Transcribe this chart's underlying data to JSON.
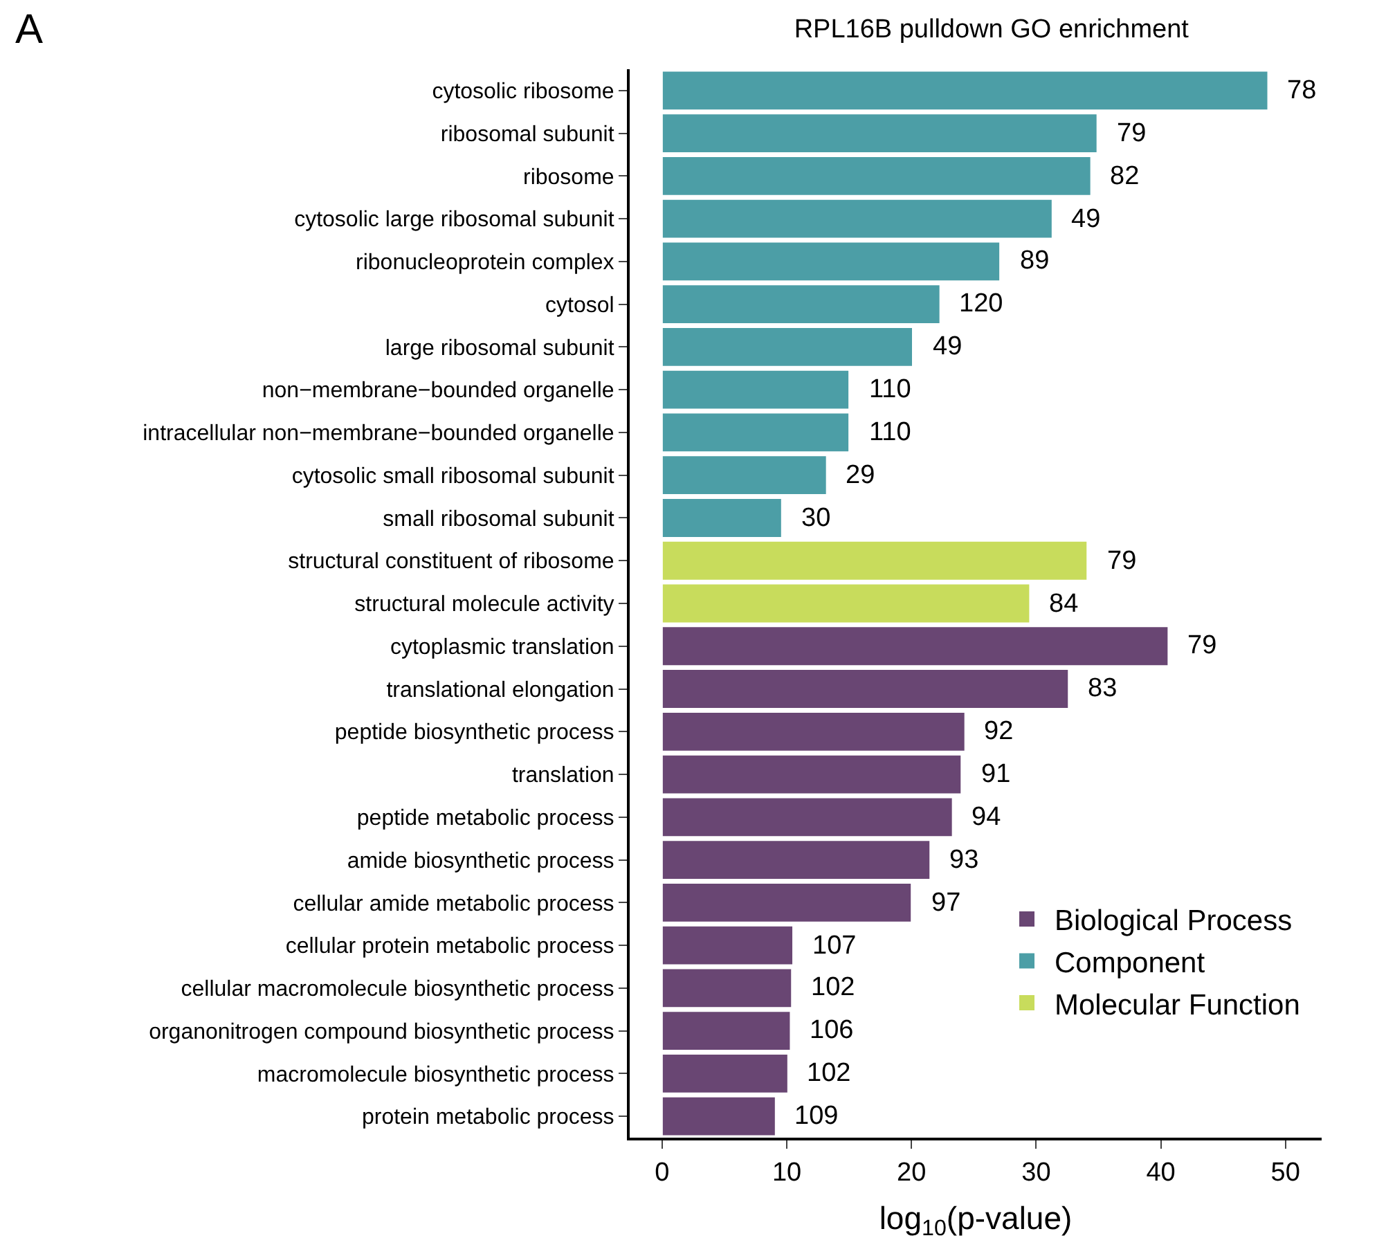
{
  "chart_data": {
    "type": "bar",
    "orientation": "horizontal",
    "title": "RPL16B pulldown GO enrichment",
    "xlabel": "log$_{10}$(p-value)",
    "annotations": [
      "A",
      {
        "text": "78",
        "x": 48.6,
        "y": "cytosolic ribosome"
      },
      {
        "text": "79",
        "x": 34.9,
        "y": "ribosomal subunit"
      },
      {
        "text": "82",
        "x": 34.4,
        "y": "ribosome"
      },
      {
        "text": "49",
        "x": 31.3,
        "y": "cytosolic large ribosomal subunit"
      },
      {
        "text": "89",
        "x": 27.1,
        "y": "ribonucleoprotein complex"
      },
      {
        "text": "120",
        "x": 22.3,
        "y": "cytosol"
      },
      {
        "text": "49",
        "x": 20.1,
        "y": "large ribosomal subunit"
      },
      {
        "text": "110",
        "x": 15.0,
        "y": "non−membrane−bounded organelle"
      },
      {
        "text": "110",
        "x": 15.0,
        "y": "intracellular non−membrane−bounded organelle"
      },
      {
        "text": "29",
        "x": 13.2,
        "y": "cytosolic small ribosomal subunit"
      },
      {
        "text": "30",
        "x": 9.6,
        "y": "small ribosomal subunit"
      },
      {
        "text": "79",
        "x": 34.1,
        "y": "structural constituent of ribosome"
      },
      {
        "text": "84",
        "x": 29.5,
        "y": "structural molecule activity"
      },
      {
        "text": "79",
        "x": 40.6,
        "y": "cytoplasmic translation"
      },
      {
        "text": "83",
        "x": 32.6,
        "y": "translational elongation"
      },
      {
        "text": "92",
        "x": 24.3,
        "y": "peptide biosynthetic process"
      },
      {
        "text": "91",
        "x": 24.0,
        "y": "translation"
      },
      {
        "text": "94",
        "x": 23.3,
        "y": "peptide metabolic process"
      },
      {
        "text": "93",
        "x": 21.5,
        "y": "amide biosynthetic process"
      },
      {
        "text": "97",
        "x": 20.0,
        "y": "cellular amide metabolic process"
      },
      {
        "text": "107",
        "x": 10.5,
        "y": "cellular protein metabolic process"
      },
      {
        "text": "102",
        "x": 10.4,
        "y": "cellular macromolecule biosynthetic process"
      },
      {
        "text": "106",
        "x": 10.3,
        "y": "organonitrogen compound biosynthetic process"
      },
      {
        "text": "102",
        "x": 10.1,
        "y": "macromolecule biosynthetic process"
      },
      {
        "text": "109",
        "x": 9.1,
        "y": "protein metabolic process"
      }
    ],
    "categories": [
      "cytosolic ribosome",
      "ribosomal subunit",
      "ribosome",
      "cytosolic large ribosomal subunit",
      "ribonucleoprotein complex",
      "cytosol",
      "large ribosomal subunit",
      "non−membrane−bounded organelle",
      "intracellular non−membrane−bounded organelle",
      "cytosolic small ribosomal subunit",
      "small ribosomal subunit",
      "structural constituent of ribosome",
      "structural molecule activity",
      "cytoplasmic translation",
      "translational elongation",
      "peptide biosynthetic process",
      "translation",
      "peptide metabolic process",
      "amide biosynthetic process",
      "cellular amide metabolic process",
      "cellular protein metabolic process",
      "cellular macromolecule biosynthetic process",
      "organonitrogen compound biosynthetic process",
      "macromolecule biosynthetic process",
      "protein metabolic process"
    ],
    "series": [
      {
        "name": "Biological Process",
        "color": "#694673",
        "values": [
          null,
          null,
          null,
          null,
          null,
          null,
          null,
          null,
          null,
          null,
          null,
          null,
          null,
          40.6,
          32.6,
          24.3,
          24.0,
          23.3,
          21.5,
          20.0,
          10.5,
          10.4,
          10.3,
          10.1,
          9.1
        ]
      },
      {
        "name": "Component",
        "color": "#4c9ea6",
        "values": [
          48.6,
          34.9,
          34.4,
          31.3,
          27.1,
          22.3,
          20.1,
          15.0,
          15.0,
          13.2,
          9.6,
          null,
          null,
          null,
          null,
          null,
          null,
          null,
          null,
          null,
          null,
          null,
          null,
          null,
          null
        ]
      },
      {
        "name": "Molecular Function",
        "color": "#c8dc5c",
        "values": [
          null,
          null,
          null,
          null,
          null,
          null,
          null,
          null,
          null,
          null,
          null,
          34.1,
          29.5,
          null,
          null,
          null,
          null,
          null,
          null,
          null,
          null,
          null,
          null,
          null,
          null
        ]
      }
    ],
    "xlim": [
      -2.6,
      52.9
    ],
    "xticks": [
      0,
      10,
      20,
      30,
      40,
      50
    ],
    "legend": "bottom right"
  }
}
